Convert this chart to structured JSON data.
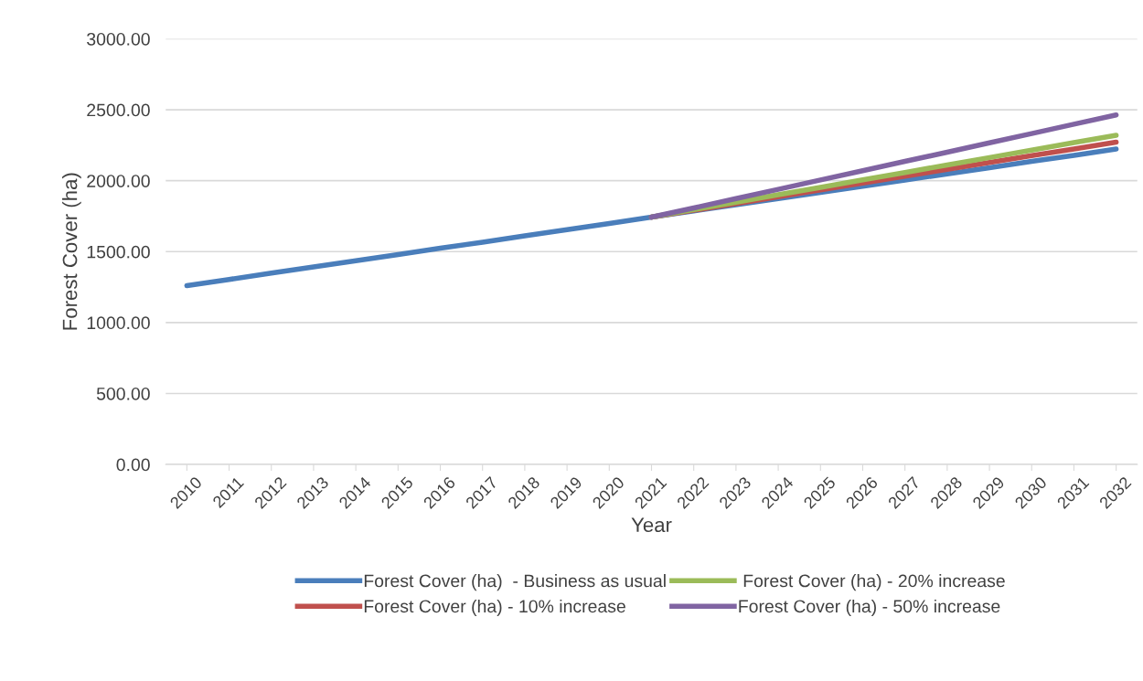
{
  "chart_data": {
    "type": "line",
    "xlabel": "Year",
    "ylabel": "Forest Cover (ha)",
    "categories": [
      "2010",
      "2011",
      "2012",
      "2013",
      "2014",
      "2015",
      "2016",
      "2017",
      "2018",
      "2019",
      "2020",
      "2021",
      "2022",
      "2023",
      "2024",
      "2025",
      "2026",
      "2027",
      "2028",
      "2029",
      "2030",
      "2031",
      "2032"
    ],
    "series": [
      {
        "name": "Forest Cover (ha)  - Business as usual",
        "color": "#4a7ebb",
        "values": [
          1260,
          1304,
          1348,
          1392,
          1436,
          1480,
          1524,
          1567,
          1611,
          1655,
          1699,
          1743,
          1787,
          1830,
          1874,
          1918,
          1961,
          2005,
          2048,
          2092,
          2136,
          2179,
          2223
        ]
      },
      {
        "name": "Forest Cover (ha) - 10% increase",
        "color": "#c0504d",
        "values": [
          null,
          null,
          null,
          null,
          null,
          null,
          null,
          null,
          null,
          null,
          null,
          1743,
          1791,
          1839,
          1887,
          1935,
          1983,
          2032,
          2080,
          2128,
          2176,
          2224,
          2272
        ]
      },
      {
        "name": " Forest Cover (ha) - 20% increase",
        "color": "#9bbb59",
        "values": [
          null,
          null,
          null,
          null,
          null,
          null,
          null,
          null,
          null,
          null,
          null,
          1743,
          1796,
          1848,
          1901,
          1953,
          2006,
          2058,
          2111,
          2163,
          2216,
          2268,
          2320
        ]
      },
      {
        "name": "Forest Cover (ha) - 50% increase",
        "color": "#8064a2",
        "values": [
          null,
          null,
          null,
          null,
          null,
          null,
          null,
          null,
          null,
          null,
          null,
          1743,
          1808,
          1874,
          1939,
          2005,
          2070,
          2136,
          2201,
          2267,
          2332,
          2398,
          2463
        ]
      }
    ],
    "ylim": [
      0,
      3000
    ],
    "yticks": [
      {
        "value": 0,
        "label": "0.00"
      },
      {
        "value": 500,
        "label": "500.00"
      },
      {
        "value": 1000,
        "label": "1000.00"
      },
      {
        "value": 1500,
        "label": "1500.00"
      },
      {
        "value": 2000,
        "label": "2000.00"
      },
      {
        "value": 2500,
        "label": "2500.00"
      },
      {
        "value": 3000,
        "label": "3000.00"
      }
    ],
    "grid": "y",
    "legend": "bottom",
    "marker": "none",
    "line_style": "solid"
  }
}
